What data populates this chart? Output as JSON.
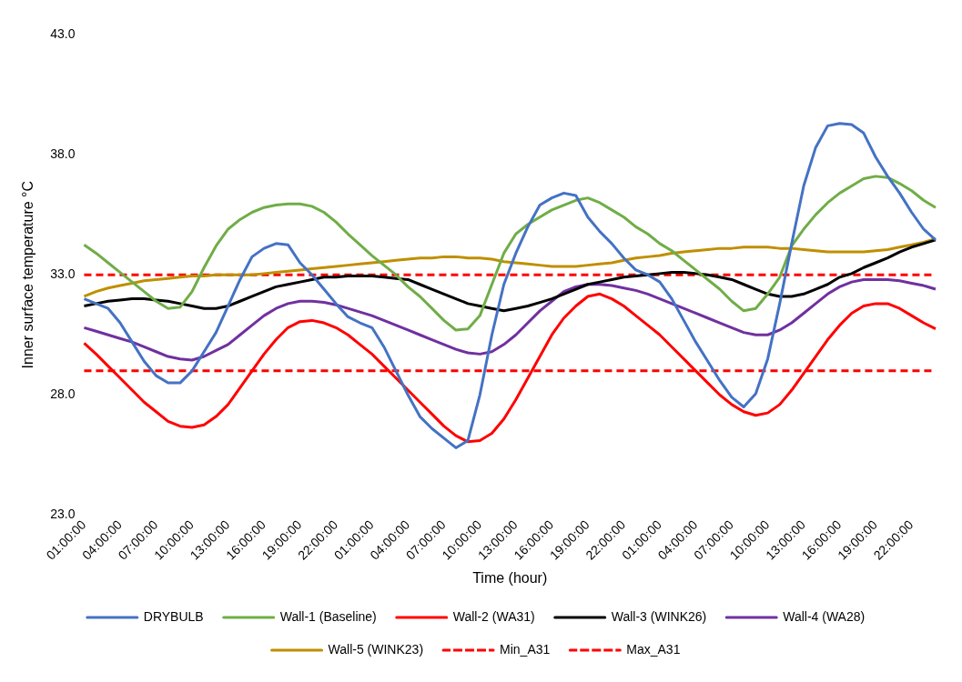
{
  "chart_data": {
    "type": "line",
    "xlabel": "Time (hour)",
    "ylabel": "Inner surface temperature °C",
    "categories": [
      "01:00:00",
      null,
      null,
      "04:00:00",
      null,
      null,
      "07:00:00",
      null,
      null,
      "10:00:00",
      null,
      null,
      "13:00:00",
      null,
      null,
      "16:00:00",
      null,
      null,
      "19:00:00",
      null,
      null,
      "22:00:00",
      null,
      null,
      "01:00:00",
      null,
      null,
      "04:00:00",
      null,
      null,
      "07:00:00",
      null,
      null,
      "10:00:00",
      null,
      null,
      "13:00:00",
      null,
      null,
      "16:00:00",
      null,
      null,
      "19:00:00",
      null,
      null,
      "22:00:00",
      null,
      null,
      "01:00:00",
      null,
      null,
      "04:00:00",
      null,
      null,
      "07:00:00",
      null,
      null,
      "10:00:00",
      null,
      null,
      "13:00:00",
      null,
      null,
      "16:00:00",
      null,
      null,
      "19:00:00",
      null,
      null,
      "22:00:00",
      null,
      null
    ],
    "ylim": [
      23,
      43
    ],
    "yticks": [
      {
        "value": 23,
        "label": "23.0"
      },
      {
        "value": 28,
        "label": "28.0"
      },
      {
        "value": 33,
        "label": "33.0"
      },
      {
        "value": 38,
        "label": "38.0"
      },
      {
        "value": 43,
        "label": "43.0"
      }
    ],
    "grid": false,
    "legend": "bottom",
    "marker": "none",
    "series": [
      {
        "name": "DRYBULB",
        "color": "#4472c4",
        "values": [
          32.0,
          31.8,
          31.6,
          31.0,
          30.2,
          29.4,
          28.8,
          28.5,
          28.5,
          29.0,
          29.8,
          30.6,
          31.7,
          32.8,
          33.75,
          34.1,
          34.3,
          34.25,
          33.5,
          33.0,
          32.4,
          31.8,
          31.25,
          31.0,
          30.8,
          30.0,
          29.0,
          28.0,
          27.1,
          26.6,
          26.2,
          25.8,
          26.1,
          28.0,
          30.5,
          32.6,
          33.9,
          35.0,
          35.9,
          36.2,
          36.4,
          36.3,
          35.4,
          34.8,
          34.3,
          33.7,
          33.2,
          33.0,
          32.7,
          32.0,
          31.1,
          30.2,
          29.4,
          28.6,
          27.9,
          27.5,
          28.05,
          29.5,
          31.8,
          34.3,
          36.7,
          38.3,
          39.2,
          39.3,
          39.25,
          38.9,
          37.9,
          37.1,
          36.4,
          35.6,
          34.9,
          34.45
        ]
      },
      {
        "name": "Wall-1 (Baseline)",
        "color": "#70ad47",
        "values": [
          34.25,
          33.9,
          33.5,
          33.1,
          32.7,
          32.3,
          31.9,
          31.6,
          31.65,
          32.3,
          33.3,
          34.2,
          34.9,
          35.3,
          35.6,
          35.8,
          35.9,
          35.95,
          35.95,
          35.85,
          35.6,
          35.2,
          34.7,
          34.25,
          33.8,
          33.4,
          33.0,
          32.5,
          32.1,
          31.6,
          31.1,
          30.7,
          30.75,
          31.3,
          32.6,
          33.9,
          34.7,
          35.1,
          35.4,
          35.7,
          35.9,
          36.1,
          36.2,
          36.0,
          35.7,
          35.4,
          35.0,
          34.7,
          34.3,
          34.0,
          33.6,
          33.2,
          32.8,
          32.4,
          31.9,
          31.5,
          31.6,
          32.2,
          32.9,
          34.2,
          34.9,
          35.5,
          36.0,
          36.4,
          36.7,
          37.0,
          37.1,
          37.05,
          36.8,
          36.5,
          36.1,
          35.8
        ]
      },
      {
        "name": "Wall-2 (WA31)",
        "color": "#ff0000",
        "values": [
          30.15,
          29.7,
          29.2,
          28.7,
          28.2,
          27.7,
          27.3,
          26.9,
          26.7,
          26.65,
          26.75,
          27.1,
          27.6,
          28.3,
          29.0,
          29.7,
          30.3,
          30.8,
          31.05,
          31.1,
          31.0,
          30.8,
          30.5,
          30.1,
          29.7,
          29.2,
          28.7,
          28.2,
          27.7,
          27.2,
          26.7,
          26.3,
          26.05,
          26.1,
          26.4,
          27.0,
          27.8,
          28.7,
          29.6,
          30.5,
          31.2,
          31.7,
          32.1,
          32.2,
          32.0,
          31.7,
          31.3,
          30.9,
          30.5,
          30.0,
          29.5,
          29.0,
          28.5,
          28.0,
          27.6,
          27.3,
          27.15,
          27.25,
          27.6,
          28.2,
          28.9,
          29.6,
          30.3,
          30.9,
          31.4,
          31.7,
          31.8,
          31.8,
          31.6,
          31.3,
          31.0,
          30.75
        ]
      },
      {
        "name": "Wall-3 (WINK26)",
        "color": "#000000",
        "values": [
          31.7,
          31.8,
          31.9,
          31.95,
          32.0,
          32.0,
          31.95,
          31.9,
          31.8,
          31.7,
          31.6,
          31.6,
          31.7,
          31.9,
          32.1,
          32.3,
          32.5,
          32.6,
          32.7,
          32.8,
          32.9,
          32.9,
          32.95,
          32.95,
          32.95,
          32.9,
          32.85,
          32.8,
          32.6,
          32.4,
          32.2,
          32.0,
          31.8,
          31.7,
          31.6,
          31.5,
          31.6,
          31.7,
          31.85,
          32.0,
          32.2,
          32.4,
          32.6,
          32.7,
          32.8,
          32.9,
          32.95,
          33.0,
          33.05,
          33.1,
          33.1,
          33.05,
          33.0,
          32.9,
          32.8,
          32.6,
          32.4,
          32.2,
          32.1,
          32.1,
          32.2,
          32.4,
          32.6,
          32.9,
          33.05,
          33.3,
          33.5,
          33.7,
          33.95,
          34.15,
          34.3,
          34.45
        ]
      },
      {
        "name": "Wall-4 (WA28)",
        "color": "#7030a0",
        "values": [
          30.8,
          30.65,
          30.5,
          30.35,
          30.2,
          30.0,
          29.8,
          29.6,
          29.5,
          29.45,
          29.6,
          29.85,
          30.1,
          30.5,
          30.9,
          31.3,
          31.6,
          31.8,
          31.9,
          31.9,
          31.85,
          31.75,
          31.6,
          31.45,
          31.3,
          31.1,
          30.9,
          30.7,
          30.5,
          30.3,
          30.1,
          29.9,
          29.75,
          29.7,
          29.8,
          30.1,
          30.5,
          31.0,
          31.5,
          31.9,
          32.3,
          32.5,
          32.6,
          32.6,
          32.55,
          32.45,
          32.35,
          32.2,
          32.0,
          31.8,
          31.6,
          31.4,
          31.2,
          31.0,
          30.8,
          30.6,
          30.5,
          30.5,
          30.7,
          31.0,
          31.4,
          31.8,
          32.2,
          32.5,
          32.7,
          32.8,
          32.8,
          32.8,
          32.75,
          32.65,
          32.55,
          32.4
        ]
      },
      {
        "name": "Wall-5 (WINK23)",
        "color": "#bf8f00",
        "values": [
          32.1,
          32.3,
          32.45,
          32.55,
          32.65,
          32.75,
          32.8,
          32.85,
          32.9,
          32.95,
          32.95,
          33.0,
          33.0,
          33.0,
          33.0,
          33.05,
          33.1,
          33.15,
          33.2,
          33.25,
          33.3,
          33.35,
          33.4,
          33.45,
          33.5,
          33.55,
          33.6,
          33.65,
          33.7,
          33.7,
          33.75,
          33.75,
          33.7,
          33.7,
          33.65,
          33.55,
          33.5,
          33.45,
          33.4,
          33.35,
          33.35,
          33.35,
          33.4,
          33.45,
          33.5,
          33.6,
          33.7,
          33.75,
          33.8,
          33.9,
          33.95,
          34.0,
          34.05,
          34.1,
          34.1,
          34.15,
          34.15,
          34.15,
          34.1,
          34.1,
          34.05,
          34.0,
          33.95,
          33.95,
          33.95,
          33.95,
          34.0,
          34.05,
          34.15,
          34.25,
          34.35,
          34.5
        ]
      },
      {
        "name": "Min_A31",
        "color": "#ff0000",
        "line_style": "dashed",
        "values": [
          29,
          29,
          29,
          29,
          29,
          29,
          29,
          29,
          29,
          29,
          29,
          29,
          29,
          29,
          29,
          29,
          29,
          29,
          29,
          29,
          29,
          29,
          29,
          29,
          29,
          29,
          29,
          29,
          29,
          29,
          29,
          29,
          29,
          29,
          29,
          29,
          29,
          29,
          29,
          29,
          29,
          29,
          29,
          29,
          29,
          29,
          29,
          29,
          29,
          29,
          29,
          29,
          29,
          29,
          29,
          29,
          29,
          29,
          29,
          29,
          29,
          29,
          29,
          29,
          29,
          29,
          29,
          29,
          29,
          29,
          29,
          29
        ]
      },
      {
        "name": "Max_A31",
        "color": "#ff0000",
        "line_style": "dashed",
        "values": [
          33,
          33,
          33,
          33,
          33,
          33,
          33,
          33,
          33,
          33,
          33,
          33,
          33,
          33,
          33,
          33,
          33,
          33,
          33,
          33,
          33,
          33,
          33,
          33,
          33,
          33,
          33,
          33,
          33,
          33,
          33,
          33,
          33,
          33,
          33,
          33,
          33,
          33,
          33,
          33,
          33,
          33,
          33,
          33,
          33,
          33,
          33,
          33,
          33,
          33,
          33,
          33,
          33,
          33,
          33,
          33,
          33,
          33,
          33,
          33,
          33,
          33,
          33,
          33,
          33,
          33,
          33,
          33,
          33,
          33,
          33,
          33
        ]
      }
    ]
  }
}
